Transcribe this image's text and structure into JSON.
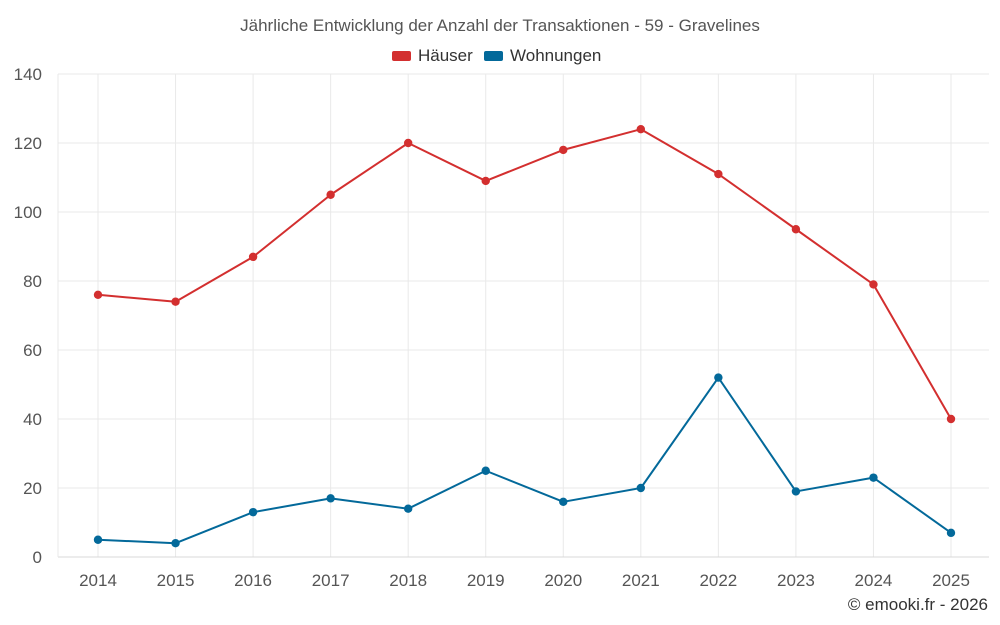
{
  "chart_data": {
    "type": "line",
    "title": "Jährliche Entwicklung der Anzahl der Transaktionen - 59 - Gravelines",
    "categories": [
      "2014",
      "2015",
      "2016",
      "2017",
      "2018",
      "2019",
      "2020",
      "2021",
      "2022",
      "2023",
      "2024",
      "2025"
    ],
    "series": [
      {
        "name": "Häuser",
        "color": "#d32f2f",
        "values": [
          76,
          74,
          87,
          105,
          120,
          109,
          118,
          124,
          111,
          95,
          79,
          40
        ]
      },
      {
        "name": "Wohnungen",
        "color": "#03699a",
        "values": [
          5,
          4,
          13,
          17,
          14,
          25,
          16,
          20,
          52,
          19,
          23,
          7
        ]
      }
    ],
    "y_ticks": [
      "0",
      "20",
      "40",
      "60",
      "80",
      "100",
      "120",
      "140"
    ],
    "ylim": [
      0,
      140
    ],
    "grid": true,
    "legend_position": "top-center",
    "xlabel": "",
    "ylabel": ""
  },
  "credit": "© emooki.fr - 2026"
}
